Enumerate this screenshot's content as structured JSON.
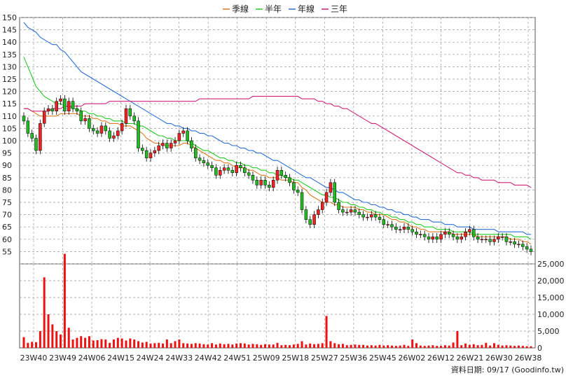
{
  "chart_data": {
    "type": "line",
    "subtype": "candlestick_with_moving_averages_and_volume",
    "legend": {
      "placement": "top-center",
      "items": [
        {
          "name": "季線",
          "color": "#e07b20"
        },
        {
          "name": "半年",
          "color": "#22cc22"
        },
        {
          "name": "年線",
          "color": "#2a6fd6"
        },
        {
          "name": "三年",
          "color": "#d0227a"
        }
      ]
    },
    "price_axis": {
      "ylim": [
        50,
        150
      ],
      "ticks": [
        "150",
        "145",
        "140",
        "135",
        "130",
        "125",
        "120",
        "115",
        "110",
        "105",
        "100",
        "95",
        "90",
        "85",
        "80",
        "75",
        "70",
        "65",
        "60",
        "55"
      ]
    },
    "volume_axis": {
      "ylim": [
        0,
        25000
      ],
      "ticks": [
        "25,000",
        "20,000",
        "15,000",
        "10,000",
        "5,000",
        "0"
      ]
    },
    "x_ticks": [
      "23W40",
      "23W49",
      "24W06",
      "24W15",
      "24W24",
      "24W33",
      "24W42",
      "24W51",
      "25W09",
      "25W18",
      "25W27",
      "25W36",
      "25W45",
      "26W02",
      "26W12",
      "26W21",
      "26W30",
      "26W38"
    ],
    "grid": true,
    "colors": {
      "up": "#ee2222",
      "down": "#22bb22",
      "volume": "#ee1111",
      "grid": "#999999"
    },
    "source_text": "資料日期: 09/17  (Goodinfo.tw)",
    "candles_close": [
      108,
      103,
      101,
      96,
      107,
      112,
      113,
      112,
      116,
      117,
      112,
      116,
      113,
      112,
      108,
      109,
      105,
      104,
      103,
      106,
      104,
      101,
      102,
      104,
      107,
      113,
      110,
      108,
      97,
      96,
      93,
      95,
      96,
      98,
      99,
      97,
      99,
      100,
      103,
      104,
      100,
      97,
      93,
      92,
      91,
      90,
      89,
      86,
      88,
      89,
      88,
      87,
      90,
      89,
      87,
      86,
      84,
      82,
      84,
      82,
      81,
      84,
      88,
      86,
      85,
      83,
      80,
      79,
      72,
      68,
      66,
      70,
      72,
      75,
      79,
      83,
      75,
      72,
      71,
      71,
      72,
      71,
      70,
      69,
      69,
      70,
      69,
      68,
      66,
      66,
      65,
      64,
      64,
      65,
      64,
      63,
      62,
      62,
      61,
      60,
      61,
      60,
      62,
      63,
      62,
      61,
      60,
      61,
      63,
      64,
      61,
      60,
      60,
      60,
      59,
      60,
      61,
      61,
      59,
      59,
      58,
      58,
      57,
      56,
      55
    ],
    "ma_quarter": [
      113,
      113,
      112,
      111,
      110,
      110,
      110,
      110,
      110,
      111,
      111,
      111,
      111,
      111,
      110,
      110,
      110,
      109,
      109,
      108,
      108,
      107,
      107,
      107,
      106,
      106,
      106,
      105,
      104,
      103,
      101,
      100,
      99,
      99,
      98,
      98,
      98,
      98,
      98,
      99,
      99,
      98,
      97,
      96,
      95,
      94,
      93,
      92,
      92,
      91,
      91,
      90,
      89,
      89,
      89,
      88,
      88,
      87,
      86,
      86,
      85,
      85,
      85,
      84,
      84,
      84,
      83,
      83,
      81,
      80,
      78,
      77,
      76,
      75,
      75,
      75,
      74,
      74,
      73,
      73,
      73,
      73,
      72,
      72,
      71,
      71,
      70,
      70,
      70,
      69,
      68,
      68,
      67,
      67,
      66,
      65,
      65,
      64,
      64,
      63,
      63,
      63,
      63,
      63,
      63,
      62,
      62,
      62,
      62,
      62,
      62,
      61,
      61,
      61,
      61,
      61,
      61,
      61,
      61,
      60,
      60,
      60,
      59,
      59,
      58
    ],
    "ma_half": [
      134,
      130,
      126,
      122,
      120,
      118,
      117,
      116,
      115,
      115,
      114,
      114,
      113,
      113,
      112,
      112,
      111,
      111,
      110,
      110,
      109,
      109,
      108,
      108,
      108,
      107,
      107,
      107,
      106,
      106,
      105,
      104,
      103,
      102,
      102,
      101,
      101,
      100,
      100,
      100,
      100,
      99,
      98,
      97,
      96,
      96,
      95,
      94,
      93,
      93,
      92,
      92,
      91,
      91,
      90,
      90,
      89,
      89,
      88,
      88,
      87,
      87,
      86,
      86,
      85,
      85,
      84,
      84,
      83,
      82,
      81,
      80,
      79,
      78,
      78,
      77,
      77,
      76,
      75,
      75,
      74,
      74,
      73,
      73,
      72,
      72,
      71,
      71,
      70,
      70,
      69,
      69,
      68,
      68,
      67,
      67,
      66,
      66,
      65,
      65,
      65,
      64,
      64,
      64,
      64,
      63,
      63,
      63,
      63,
      63,
      62,
      62,
      62,
      62,
      62,
      62,
      62,
      62,
      62,
      62,
      61,
      61,
      61,
      61,
      60
    ],
    "ma_year": [
      148,
      146,
      145,
      144,
      142,
      141,
      140,
      139,
      139,
      137,
      136,
      134,
      132,
      130,
      128,
      127,
      126,
      125,
      124,
      123,
      122,
      121,
      120,
      119,
      118,
      117,
      116,
      115,
      114,
      113,
      112,
      111,
      110,
      109,
      108,
      107,
      107,
      106,
      106,
      105,
      105,
      104,
      104,
      103,
      103,
      102,
      102,
      101,
      100,
      99,
      99,
      98,
      98,
      97,
      97,
      96,
      96,
      95,
      95,
      94,
      93,
      92,
      92,
      91,
      90,
      89,
      88,
      87,
      86,
      85,
      85,
      84,
      83,
      82,
      81,
      81,
      80,
      79,
      79,
      78,
      77,
      76,
      76,
      75,
      75,
      74,
      74,
      73,
      73,
      72,
      72,
      71,
      71,
      70,
      70,
      69,
      69,
      68,
      68,
      68,
      67,
      67,
      67,
      66,
      66,
      66,
      65,
      65,
      65,
      65,
      64,
      64,
      64,
      64,
      64,
      64,
      63,
      63,
      63,
      63,
      63,
      63,
      63,
      62,
      62
    ],
    "ma_3year": [
      113,
      113,
      112,
      112,
      112,
      112,
      112,
      113,
      113,
      113,
      114,
      114,
      114,
      114,
      114,
      115,
      115,
      115,
      115,
      115,
      115,
      116,
      116,
      116,
      116,
      116,
      116,
      116,
      116,
      116,
      116,
      116,
      116,
      116,
      116,
      116,
      116,
      116,
      116,
      116,
      116,
      116,
      116,
      117,
      117,
      117,
      117,
      117,
      117,
      117,
      117,
      117,
      117,
      117,
      117,
      117,
      118,
      118,
      118,
      118,
      118,
      118,
      118,
      118,
      118,
      118,
      118,
      118,
      117,
      117,
      117,
      117,
      116,
      116,
      115,
      115,
      114,
      114,
      113,
      113,
      112,
      111,
      110,
      109,
      108,
      107,
      107,
      106,
      105,
      104,
      103,
      102,
      101,
      100,
      99,
      98,
      97,
      96,
      95,
      94,
      93,
      92,
      91,
      90,
      89,
      88,
      87,
      87,
      86,
      86,
      85,
      85,
      84,
      84,
      84,
      84,
      83,
      83,
      83,
      83,
      82,
      82,
      82,
      82,
      81
    ],
    "volume": [
      3200,
      1500,
      1800,
      1700,
      5000,
      21000,
      10000,
      7000,
      5000,
      4000,
      28000,
      6000,
      2500,
      3000,
      3500,
      3000,
      3500,
      2200,
      2300,
      2600,
      2500,
      1500,
      2500,
      3000,
      2800,
      2200,
      2800,
      2500,
      2000,
      1600,
      1800,
      1300,
      1400,
      1500,
      1300,
      2500,
      1400,
      2000,
      2500,
      1400,
      1300,
      1200,
      1400,
      1300,
      1100,
      1000,
      1400,
      1000,
      1300,
      1100,
      1200,
      1000,
      1300,
      1400,
      1300,
      1000,
      1200,
      1100,
      900,
      1100,
      1000,
      1000,
      1500,
      800,
      900,
      800,
      1000,
      1200,
      2000,
      1000,
      1300,
      1100,
      1200,
      1400,
      9500,
      2000,
      1400,
      1100,
      1200,
      800,
      900,
      1000,
      900,
      900,
      700,
      800,
      700,
      900,
      700,
      800,
      700,
      600,
      700,
      900,
      600,
      2500,
      1400,
      700,
      600,
      700,
      800,
      600,
      600,
      800,
      700,
      1600,
      5000,
      800,
      1300,
      900,
      1100,
      800,
      900,
      1500,
      700,
      1400,
      900,
      700,
      800,
      700,
      600,
      700,
      600,
      500,
      500
    ]
  }
}
